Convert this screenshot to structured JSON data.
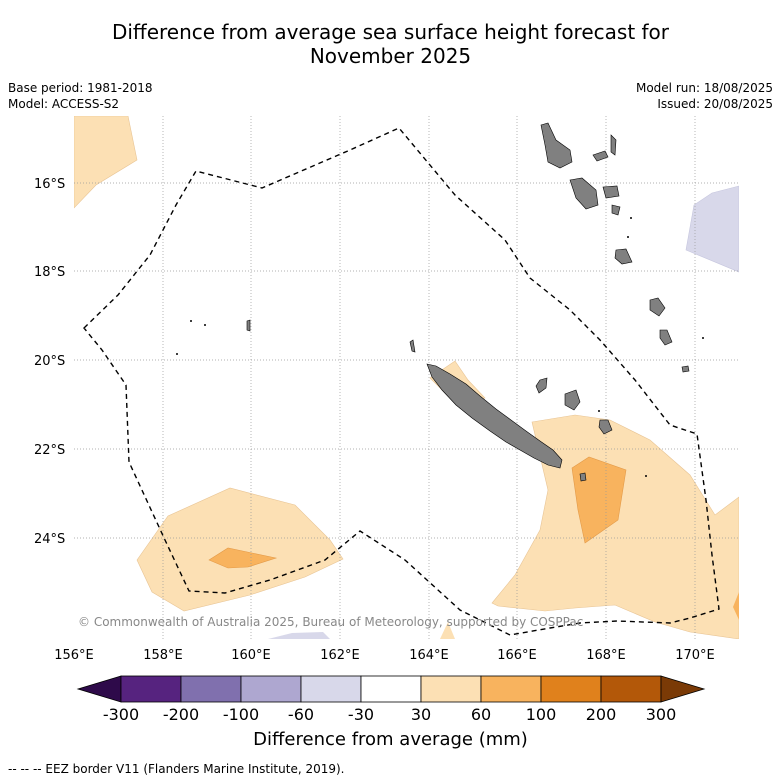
{
  "title_line1": "Difference from average sea surface height forecast for",
  "title_line2": "November 2025",
  "meta_left": [
    "Base period: 1981-2018",
    "Model: ACCESS-S2"
  ],
  "meta_right": [
    "Model run: 18/08/2025",
    "Issued: 20/08/2025"
  ],
  "lat_labels": [
    "16°S",
    "18°S",
    "20°S",
    "22°S",
    "24°S"
  ],
  "lon_labels": [
    "156°E",
    "158°E",
    "160°E",
    "162°E",
    "164°E",
    "166°E",
    "168°E",
    "170°E"
  ],
  "copyright": "© Commonwealth of Australia 2025, Bureau of Meteorology, supported by COSPPac",
  "colorbar": {
    "ticks": [
      "-300",
      "-200",
      "-100",
      "-60",
      "-30",
      "30",
      "60",
      "100",
      "200",
      "300"
    ],
    "colors": [
      "#2e0a4a",
      "#56237f",
      "#8070ae",
      "#aea7d0",
      "#d8d8ea",
      "#ffffff",
      "#fce0b4",
      "#f8b35e",
      "#e0811c",
      "#b35809",
      "#7a3a06"
    ],
    "title": "Difference from average (mm)"
  },
  "eez_note": "-- -- -- EEZ border V11 (Flanders Marine Institute, 2019)."
}
